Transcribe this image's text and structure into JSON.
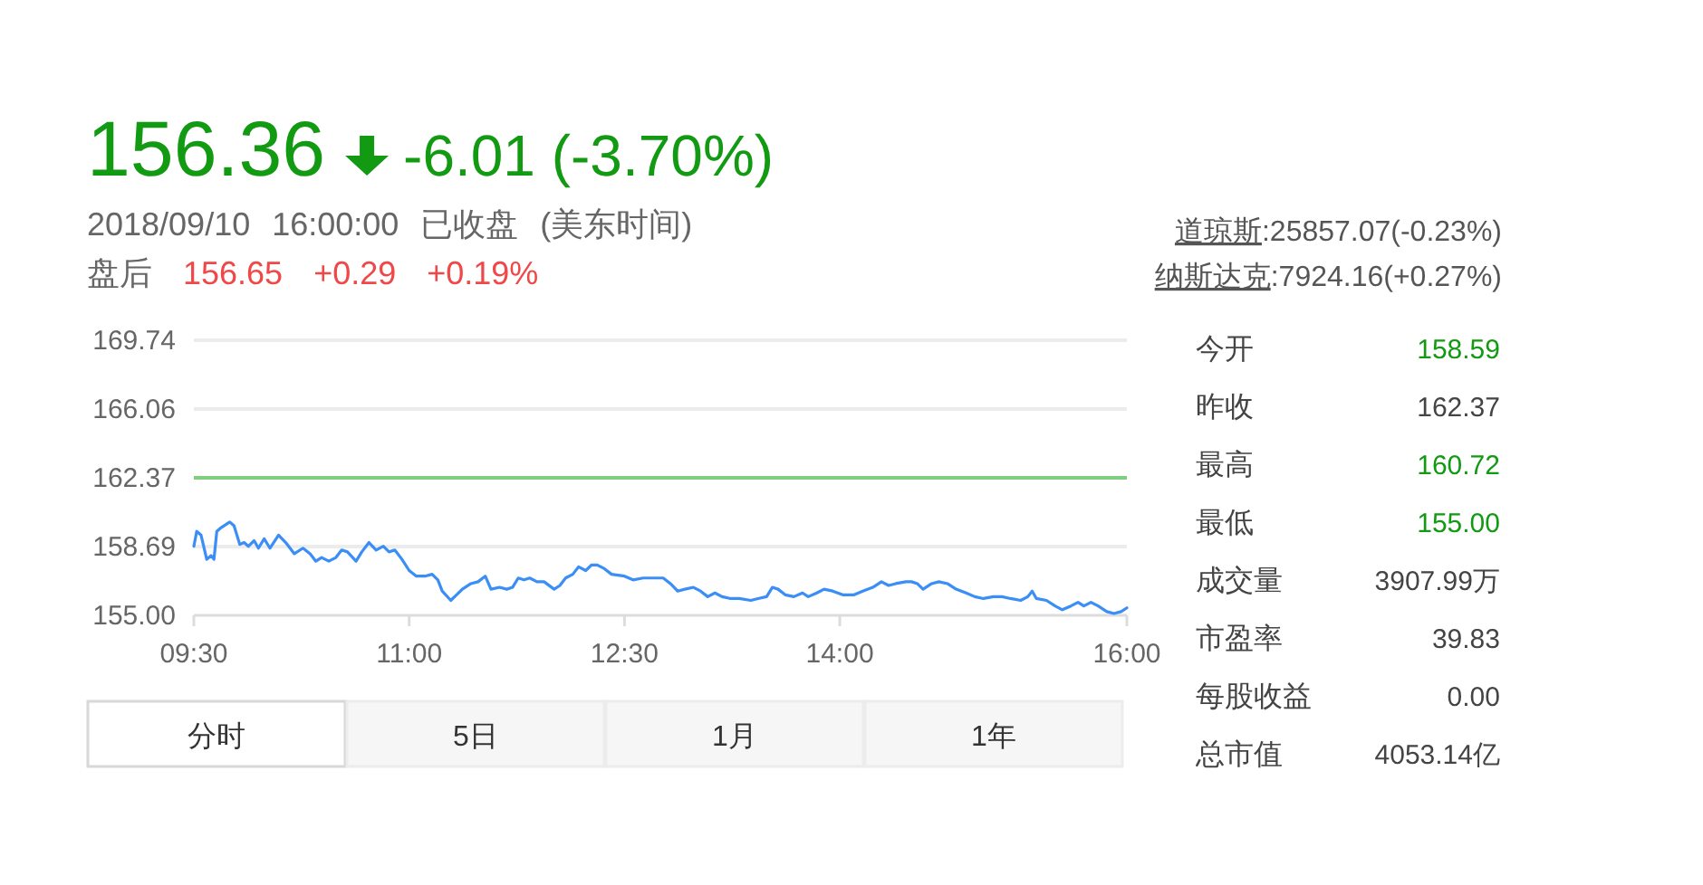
{
  "chart_data": [
    {
      "type": "line",
      "title": "156.36",
      "subtitle": "2018/09/10 16:00:00 已收盘 (美东时间)",
      "annotations": [
        "-6.01 (-3.70%)",
        "盘后",
        "156.65",
        "+0.29",
        "+0.19%",
        "道琼斯:25857.07(-0.23%)",
        "纳斯达克:7924.16(+0.27%)"
      ],
      "series": [
        {
          "color": "#3a8ef6",
          "x": [
            9.5,
            9.52,
            9.55,
            9.59,
            9.62,
            9.64,
            9.66,
            9.69,
            9.75,
            9.78,
            9.82,
            9.85,
            9.88,
            9.92,
            9.95,
            9.99,
            10.03,
            10.09,
            10.14,
            10.2,
            10.26,
            10.31,
            10.35,
            10.39,
            10.44,
            10.49,
            10.53,
            10.57,
            10.63,
            10.67,
            10.72,
            10.77,
            10.82,
            10.86,
            10.9,
            10.95,
            11.0,
            11.05,
            11.11,
            11.16,
            11.2,
            11.23,
            11.29,
            11.33,
            11.37,
            11.43,
            11.48,
            11.53,
            11.57,
            11.63,
            11.68,
            11.72,
            11.76,
            11.8,
            11.84,
            11.89,
            11.94,
            12.01,
            12.05,
            12.09,
            12.14,
            12.18,
            12.23,
            12.27,
            12.31,
            12.36,
            12.41,
            12.5,
            12.56,
            12.63,
            12.71,
            12.77,
            12.82,
            12.87,
            12.92,
            12.98,
            13.03,
            13.08,
            13.13,
            13.18,
            13.24,
            13.3,
            13.38,
            13.43,
            13.49,
            13.53,
            13.57,
            13.62,
            13.68,
            13.74,
            13.78,
            13.84,
            13.89,
            13.95,
            14.02,
            14.1,
            14.16,
            14.23,
            14.29,
            14.34,
            14.39,
            14.46,
            14.5,
            14.54,
            14.58,
            14.64,
            14.69,
            14.75,
            14.81,
            14.88,
            14.94,
            15.0,
            15.07,
            15.13,
            15.19,
            15.26,
            15.31,
            15.34,
            15.37,
            15.44,
            15.5,
            15.55,
            15.61,
            15.66,
            15.7,
            15.75,
            15.8,
            15.86,
            15.91,
            15.96,
            16.0
          ],
          "values": [
            158.7,
            159.5,
            159.3,
            158.0,
            158.2,
            158.0,
            159.5,
            159.7,
            160.0,
            159.8,
            158.8,
            158.9,
            158.7,
            159.0,
            158.6,
            159.1,
            158.6,
            159.3,
            158.9,
            158.3,
            158.6,
            158.3,
            157.9,
            158.1,
            157.9,
            158.1,
            158.5,
            158.4,
            157.9,
            158.4,
            158.9,
            158.5,
            158.7,
            158.4,
            158.5,
            158.0,
            157.4,
            157.1,
            157.1,
            157.2,
            156.9,
            156.3,
            155.8,
            156.1,
            156.4,
            156.7,
            156.8,
            157.1,
            156.4,
            156.5,
            156.4,
            156.5,
            157.0,
            156.9,
            157.0,
            156.8,
            156.8,
            156.4,
            156.6,
            157.0,
            157.2,
            157.6,
            157.4,
            157.7,
            157.7,
            157.5,
            157.2,
            157.1,
            156.9,
            157.0,
            157.0,
            157.0,
            156.7,
            156.3,
            156.4,
            156.5,
            156.3,
            156.0,
            156.2,
            156.0,
            155.9,
            155.9,
            155.8,
            155.9,
            156.0,
            156.5,
            156.4,
            156.1,
            156.0,
            156.2,
            156.0,
            156.2,
            156.4,
            156.3,
            156.1,
            156.1,
            156.3,
            156.5,
            156.8,
            156.6,
            156.7,
            156.8,
            156.8,
            156.7,
            156.4,
            156.7,
            156.8,
            156.7,
            156.4,
            156.2,
            156.0,
            155.9,
            156.0,
            156.0,
            155.9,
            155.8,
            156.0,
            156.3,
            155.9,
            155.8,
            155.5,
            155.3,
            155.5,
            155.7,
            155.5,
            155.7,
            155.5,
            155.2,
            155.1,
            155.2,
            155.4
          ]
        }
      ],
      "xlim": [
        9.5,
        16
      ],
      "xticks": [
        {
          "value": 9.5,
          "label": "09:30"
        },
        {
          "value": 11,
          "label": "11:00"
        },
        {
          "value": 12.5,
          "label": "12:30"
        },
        {
          "value": 14,
          "label": "14:00"
        },
        {
          "value": 16,
          "label": "16:00"
        }
      ],
      "ylim": [
        155,
        169.74
      ],
      "yticks": [
        {
          "value": 155,
          "label": "155.00"
        },
        158.69,
        162.37,
        166.06,
        169.74
      ],
      "ref_lines": [
        {
          "axis": "y",
          "value": 162.37,
          "color": "#80cf80"
        }
      ],
      "grid": "y"
    },
    {
      "type": "other",
      "categories": [
        "今开",
        "昨收",
        "最高",
        "最低",
        "成交量",
        "市盈率",
        "每股收益",
        "总市值"
      ],
      "value_labels": [
        "158.59",
        "162.37",
        "160.72",
        "155.00",
        "3907.99万",
        "39.83",
        "0.00",
        "4053.14亿"
      ],
      "colors": [
        "#139a13",
        "#444444",
        "#139a13",
        "#139a13",
        "#444444",
        "#444444",
        "#444444",
        "#444444"
      ]
    },
    {
      "type": "other",
      "categories": [
        "分时",
        "5日",
        "1月",
        "1年"
      ]
    }
  ]
}
